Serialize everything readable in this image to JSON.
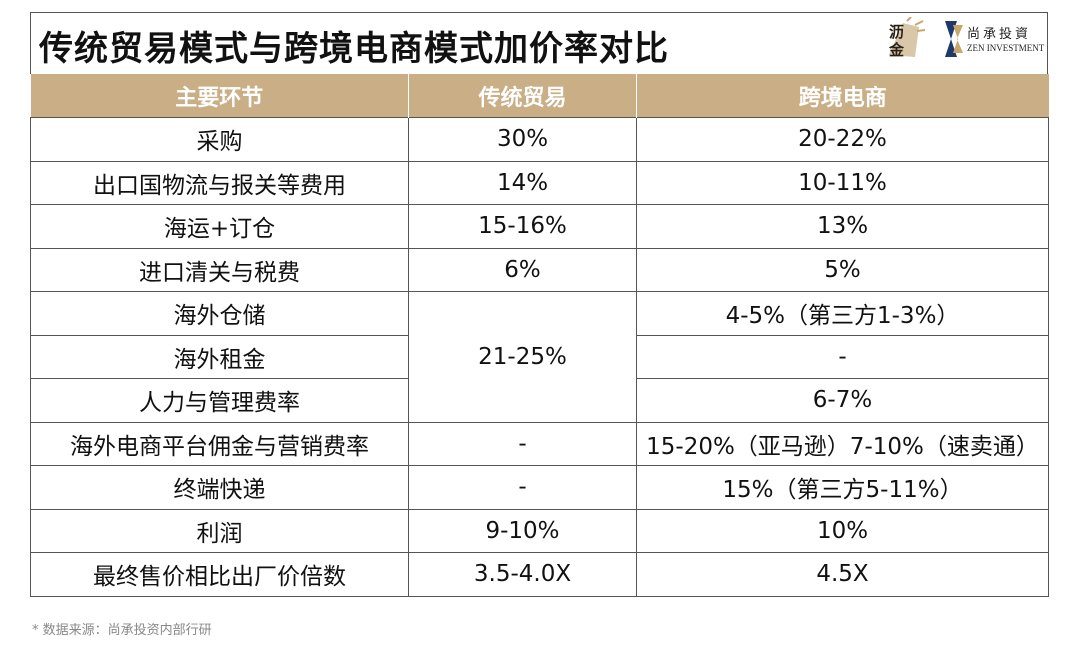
{
  "title": "传统贸易模式与跨境电商模式加价率对比",
  "logos": {
    "logo1_chars": [
      "沥",
      "金"
    ],
    "logo2_cn": "尚承投資",
    "logo2_en": "ZEN INVESTMENT"
  },
  "table": {
    "headers": [
      "主要环节",
      "传统贸易",
      "跨境电商"
    ],
    "header_color": "#c9ae86",
    "rows": [
      [
        "采购",
        "30%",
        "20-22%"
      ],
      [
        "出口国物流与报关等费用",
        "14%",
        "10-11%"
      ],
      [
        "海运+订仓",
        "15-16%",
        "13%"
      ],
      [
        "进口清关与税费",
        "6%",
        "5%"
      ],
      [
        "海外仓储",
        "21-25%",
        "4-5%（第三方1-3%）"
      ],
      [
        "海外租金",
        "",
        "-"
      ],
      [
        "人力与管理费率",
        "",
        "6-7%"
      ],
      [
        "海外电商平台佣金与营销费率",
        "-",
        "15-20%（亚马逊）7-10%（速卖通）"
      ],
      [
        "终端快递",
        "-",
        "15%（第三方5-11%）"
      ],
      [
        "利润",
        "9-10%",
        "10%"
      ],
      [
        "最终售价相比出厂价倍数",
        "3.5-4.0X",
        "4.5X"
      ]
    ]
  },
  "footnote": "* 数据来源：尚承投资内部行研"
}
